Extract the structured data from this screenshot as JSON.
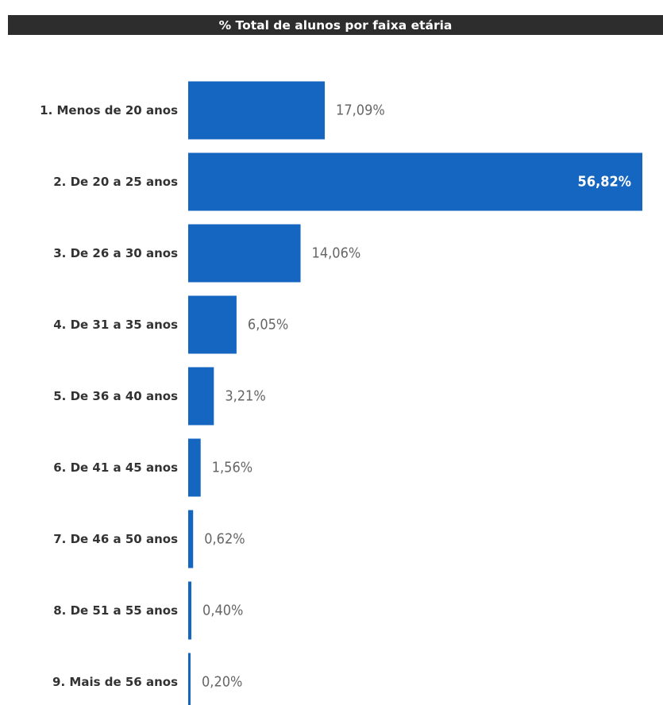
{
  "chart_data": {
    "type": "bar",
    "orientation": "horizontal",
    "title": "% Total de alunos por faixa etária",
    "categories": [
      "1. Menos de 20 anos",
      "2. De 20 a 25 anos",
      "3. De 26 a 30 anos",
      "4. De 31 a 35 anos",
      "5. De 36 a 40 anos",
      "6. De 41 a 45 anos",
      "7. De 46 a 50 anos",
      "8. De 51 a 55 anos",
      "9. Mais de 56 anos"
    ],
    "values": [
      17.09,
      56.82,
      14.06,
      6.05,
      3.21,
      1.56,
      0.62,
      0.4,
      0.2
    ],
    "value_labels": [
      "17,09%",
      "56,82%",
      "14,06%",
      "6,05%",
      "3,21%",
      "1,56%",
      "0,62%",
      "0,40%",
      "0,20%"
    ],
    "xlabel": "",
    "ylabel": "",
    "grid": false,
    "bar_color": "#1566c0"
  }
}
